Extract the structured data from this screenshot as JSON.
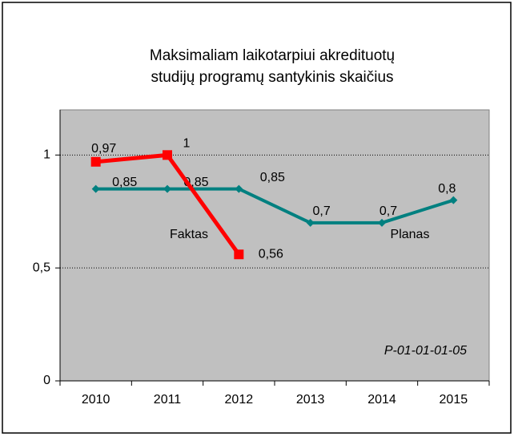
{
  "chart_data": {
    "type": "line",
    "title": [
      "Maksimaliam laikotarpiui akredituotų",
      "studijų programų santykinis skaičius"
    ],
    "categories": [
      "2010",
      "2011",
      "2012",
      "2013",
      "2014",
      "2015"
    ],
    "series": [
      {
        "name": "Planas",
        "color": "#008080",
        "values": [
          0.85,
          0.85,
          0.85,
          0.7,
          0.7,
          0.8
        ],
        "value_labels": [
          "0,85",
          "0,85",
          "0,85",
          "0,7",
          "0,7",
          "0,8"
        ]
      },
      {
        "name": "Faktas",
        "color": "#ff0000",
        "values": [
          0.97,
          1,
          0.56,
          null,
          null,
          null
        ],
        "value_labels": [
          "0,97",
          "1",
          "0,56",
          null,
          null,
          null
        ]
      }
    ],
    "ylim": [
      0,
      1.2
    ],
    "yticks": [
      0,
      {
        "value": 0.5,
        "label": "0,5"
      },
      1
    ],
    "grid": true,
    "annotation": "P-01-01-01-05"
  }
}
